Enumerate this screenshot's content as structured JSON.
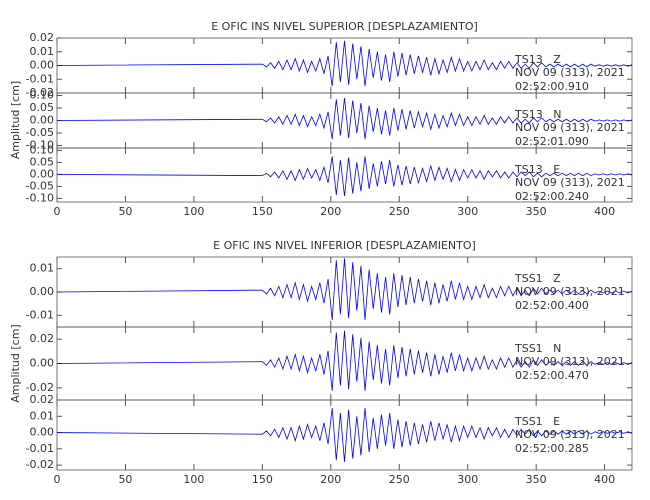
{
  "chart_data": [
    {
      "type": "line",
      "title": "E OFIC INS NIVEL SUPERIOR [DESPLAZAMIENTO]",
      "ylabel": "Amplitud [cm]",
      "xlim": [
        0,
        420
      ],
      "xticks": [
        0,
        50,
        100,
        150,
        200,
        250,
        300,
        350,
        400
      ],
      "x": [
        0,
        150,
        153,
        156,
        159,
        162,
        165,
        168,
        171,
        174,
        177,
        180,
        183,
        186,
        189,
        192,
        195,
        198,
        201,
        204,
        207,
        210,
        213,
        216,
        219,
        222,
        225,
        228,
        231,
        234,
        237,
        240,
        243,
        246,
        249,
        252,
        255,
        258,
        261,
        264,
        267,
        270,
        273,
        276,
        279,
        282,
        285,
        288,
        291,
        294,
        297,
        300,
        303,
        306,
        309,
        312,
        315,
        318,
        321,
        324,
        327,
        330,
        333,
        336,
        339,
        342,
        345,
        348,
        351,
        354,
        357,
        360,
        363,
        366,
        369,
        372,
        375,
        378,
        381,
        384,
        387,
        390,
        393,
        396,
        399,
        402,
        405,
        408,
        411,
        414,
        417,
        420
      ],
      "panels": [
        {
          "station": "TS13   Z",
          "date": "NOV 09 (313), 2021",
          "time": "02:52:00.910",
          "color": "#0000ff",
          "ylim": [
            -0.02,
            0.02
          ],
          "yticks": [
            0.02,
            0.01,
            {
              "value": 0,
              "label": "0.00"
            },
            -0.01,
            -0.02
          ],
          "values": [
            0,
            0.001,
            -0.001,
            0.002,
            -0.002,
            0.003,
            -0.003,
            0.004,
            -0.003,
            0.005,
            -0.004,
            0.004,
            -0.005,
            0.003,
            -0.004,
            0.005,
            -0.006,
            0.007,
            -0.015,
            0.017,
            -0.012,
            0.018,
            -0.014,
            0.016,
            -0.01,
            0.014,
            -0.015,
            0.012,
            -0.009,
            0.01,
            -0.011,
            0.008,
            -0.012,
            0.01,
            -0.008,
            0.009,
            -0.007,
            0.008,
            -0.006,
            0.007,
            -0.005,
            0.006,
            -0.007,
            0.005,
            -0.006,
            0.004,
            -0.005,
            0.006,
            -0.004,
            0.005,
            -0.004,
            0.003,
            -0.004,
            0.003,
            -0.003,
            0.004,
            -0.003,
            0.002,
            -0.003,
            0.003,
            -0.002,
            0.003,
            -0.002,
            0.002,
            -0.002,
            0.001,
            -0.002,
            0.002,
            -0.001,
            0.002,
            -0.001,
            0.001,
            -0.001,
            0.001,
            -0.001,
            0.001,
            -0.001,
            0.001,
            -0.001,
            0.001,
            -0.001,
            0.001,
            -0.0005,
            0.0005,
            -0.0005,
            0.0005,
            -0.0005,
            0.0005,
            -0.0005,
            0.0005,
            -0.0005,
            0.0005
          ]
        },
        {
          "station": "TS13   N",
          "date": "NOV 09 (313), 2021",
          "time": "02:52:01.090",
          "color": "#0000ff",
          "ylim": [
            -0.11,
            0.11
          ],
          "yticks": [
            {
              "value": 0.1,
              "label": "0.10"
            },
            0.05,
            {
              "value": 0,
              "label": "0.00"
            },
            -0.05,
            {
              "value": -0.1,
              "label": "-0.10"
            }
          ],
          "values": [
            0,
            0.005,
            -0.005,
            0.01,
            -0.01,
            0.015,
            -0.015,
            0.02,
            -0.015,
            0.025,
            -0.02,
            0.02,
            -0.025,
            0.015,
            -0.02,
            0.025,
            -0.03,
            0.035,
            -0.075,
            0.085,
            -0.06,
            0.09,
            -0.07,
            0.08,
            -0.05,
            0.07,
            -0.075,
            0.06,
            -0.045,
            0.05,
            -0.055,
            0.04,
            -0.06,
            0.05,
            -0.04,
            0.045,
            -0.035,
            0.04,
            -0.03,
            0.035,
            -0.025,
            0.03,
            -0.035,
            0.025,
            -0.03,
            0.02,
            -0.025,
            0.03,
            -0.02,
            0.025,
            -0.02,
            0.015,
            -0.02,
            0.015,
            -0.015,
            0.02,
            -0.015,
            0.01,
            -0.015,
            0.015,
            -0.01,
            0.015,
            -0.01,
            0.01,
            -0.01,
            0.005,
            -0.01,
            0.01,
            -0.005,
            0.01,
            -0.005,
            0.005,
            -0.005,
            0.005,
            -0.005,
            0.005,
            -0.005,
            0.005,
            -0.005,
            0.005,
            -0.005,
            0.005,
            -0.0025,
            0.0025,
            -0.0025,
            0.0025,
            -0.0025,
            0.0025,
            -0.0025,
            0.0025,
            -0.0025,
            0.0025
          ]
        },
        {
          "station": "TS13   E",
          "date": "NOV 09 (313), 2021",
          "time": "02:52:00.240",
          "color": "#0000ff",
          "ylim": [
            -0.115,
            0.11
          ],
          "yticks": [
            {
              "value": 0.1,
              "label": "0.10"
            },
            0.05,
            {
              "value": 0,
              "label": "0.00"
            },
            -0.05,
            {
              "value": -0.1,
              "label": "-0.10"
            }
          ],
          "values": [
            0,
            -0.005,
            0.005,
            -0.01,
            0.01,
            -0.015,
            0.015,
            -0.02,
            0.015,
            -0.025,
            0.02,
            -0.02,
            0.025,
            -0.015,
            0.02,
            -0.025,
            0.03,
            -0.035,
            0.075,
            -0.085,
            0.06,
            -0.09,
            0.07,
            -0.08,
            0.05,
            -0.07,
            0.075,
            -0.06,
            0.045,
            -0.05,
            0.055,
            -0.04,
            0.06,
            -0.05,
            0.04,
            -0.045,
            0.035,
            -0.04,
            0.03,
            -0.035,
            0.025,
            -0.03,
            0.035,
            -0.025,
            0.03,
            -0.02,
            0.025,
            -0.03,
            0.02,
            -0.025,
            0.02,
            -0.015,
            0.02,
            -0.015,
            0.015,
            -0.02,
            0.015,
            -0.01,
            0.015,
            -0.015,
            0.01,
            -0.015,
            0.01,
            -0.01,
            0.01,
            -0.005,
            0.01,
            -0.01,
            0.005,
            -0.01,
            0.005,
            -0.005,
            0.005,
            -0.005,
            0.005,
            -0.005,
            0.005,
            -0.005,
            0.005,
            -0.005,
            0.005,
            -0.005,
            0.0025,
            -0.0025,
            0.0025,
            -0.0025,
            0.0025,
            -0.0025,
            0.0025,
            -0.0025,
            0.0025,
            -0.0025
          ]
        }
      ]
    },
    {
      "type": "line",
      "title": "E OFIC INS NIVEL INFERIOR [DESPLAZAMIENTO]",
      "ylabel": "Amplitud [cm]",
      "xlim": [
        0,
        420
      ],
      "xticks": [
        0,
        50,
        100,
        150,
        200,
        250,
        300,
        350,
        400
      ],
      "x": [
        0,
        150,
        153,
        156,
        159,
        162,
        165,
        168,
        171,
        174,
        177,
        180,
        183,
        186,
        189,
        192,
        195,
        198,
        201,
        204,
        207,
        210,
        213,
        216,
        219,
        222,
        225,
        228,
        231,
        234,
        237,
        240,
        243,
        246,
        249,
        252,
        255,
        258,
        261,
        264,
        267,
        270,
        273,
        276,
        279,
        282,
        285,
        288,
        291,
        294,
        297,
        300,
        303,
        306,
        309,
        312,
        315,
        318,
        321,
        324,
        327,
        330,
        333,
        336,
        339,
        342,
        345,
        348,
        351,
        354,
        357,
        360,
        363,
        366,
        369,
        372,
        375,
        378,
        381,
        384,
        387,
        390,
        393,
        396,
        399,
        402,
        405,
        408,
        411,
        414,
        417,
        420
      ],
      "panels": [
        {
          "station": "TSS1   Z",
          "date": "NOV 09 (313), 2021",
          "time": "02:52:00.400",
          "color": "#0000ff",
          "ylim": [
            -0.015,
            0.015
          ],
          "yticks": [
            0.01,
            {
              "value": 0,
              "label": "0.00"
            },
            -0.01
          ],
          "values": [
            0,
            0.0008,
            -0.0008,
            0.0016,
            -0.0016,
            0.0024,
            -0.0024,
            0.0032,
            -0.0024,
            0.004,
            -0.0032,
            0.0032,
            -0.004,
            0.0024,
            -0.0032,
            0.004,
            -0.0048,
            0.0056,
            -0.012,
            0.0136,
            -0.0096,
            0.0144,
            -0.0112,
            0.0128,
            -0.008,
            0.0112,
            -0.012,
            0.0096,
            -0.0072,
            0.008,
            -0.0088,
            0.0064,
            -0.0096,
            0.008,
            -0.0064,
            0.0072,
            -0.0056,
            0.0064,
            -0.0048,
            0.0056,
            -0.004,
            0.0048,
            -0.0056,
            0.004,
            -0.0048,
            0.0032,
            -0.004,
            0.0048,
            -0.0032,
            0.004,
            -0.0032,
            0.0024,
            -0.0032,
            0.0024,
            -0.0024,
            0.0032,
            -0.0024,
            0.0016,
            -0.0024,
            0.0024,
            -0.0016,
            0.0024,
            -0.0016,
            0.0016,
            -0.0016,
            0.0008,
            -0.0016,
            0.0016,
            -0.0008,
            0.0016,
            -0.0008,
            0.0008,
            -0.0008,
            0.0008,
            -0.0008,
            0.0008,
            -0.0008,
            0.0008,
            -0.0008,
            0.0008,
            -0.0008,
            0.0008,
            -0.0004,
            0.0004,
            -0.0004,
            0.0004,
            -0.0004,
            0.0004,
            -0.0004,
            0.0004,
            -0.0004,
            0.0004
          ]
        },
        {
          "station": "TSS1   N",
          "date": "NOV 09 (313), 2021",
          "time": "02:52:00.470",
          "color": "#0000ff",
          "ylim": [
            -0.03,
            0.03
          ],
          "yticks": [
            0.02,
            {
              "value": 0,
              "label": "0.00"
            },
            -0.02
          ],
          "values": [
            0,
            0.0015,
            -0.0015,
            0.003,
            -0.003,
            0.0045,
            -0.0045,
            0.006,
            -0.0045,
            0.0075,
            -0.006,
            0.006,
            -0.0075,
            0.0045,
            -0.006,
            0.0075,
            -0.009,
            0.0105,
            -0.0225,
            0.0255,
            -0.018,
            0.027,
            -0.021,
            0.024,
            -0.015,
            0.021,
            -0.0225,
            0.018,
            -0.0135,
            0.015,
            -0.0165,
            0.012,
            -0.018,
            0.015,
            -0.012,
            0.0135,
            -0.0105,
            0.012,
            -0.009,
            0.0105,
            -0.0075,
            0.009,
            -0.0105,
            0.0075,
            -0.009,
            0.006,
            -0.0075,
            0.009,
            -0.006,
            0.0075,
            -0.006,
            0.0045,
            -0.006,
            0.0045,
            -0.0045,
            0.006,
            -0.0045,
            0.003,
            -0.0045,
            0.0045,
            -0.003,
            0.0045,
            -0.003,
            0.003,
            -0.003,
            0.0015,
            -0.003,
            0.003,
            -0.0015,
            0.003,
            -0.0015,
            0.0015,
            -0.0015,
            0.0015,
            -0.0015,
            0.0015,
            -0.0015,
            0.0015,
            -0.0015,
            0.0015,
            -0.0015,
            0.0015,
            -0.00075,
            0.00075,
            -0.00075,
            0.00075,
            -0.00075,
            0.00075,
            -0.00075,
            0.00075,
            -0.00075,
            0.00075
          ]
        },
        {
          "station": "TSS1   E",
          "date": "NOV 09 (313), 2021",
          "time": "02:52:00.285",
          "color": "#0000ff",
          "ylim": [
            -0.023,
            0.02
          ],
          "yticks": [
            0.02,
            0.01,
            {
              "value": 0,
              "label": "0.00"
            },
            -0.01,
            -0.02
          ],
          "values": [
            0,
            -0.001,
            0.001,
            -0.002,
            0.002,
            -0.003,
            0.003,
            -0.004,
            0.003,
            -0.005,
            0.004,
            -0.004,
            0.005,
            -0.003,
            0.004,
            -0.005,
            0.006,
            -0.007,
            0.015,
            -0.017,
            0.012,
            -0.018,
            0.014,
            -0.016,
            0.01,
            -0.014,
            0.015,
            -0.012,
            0.009,
            -0.01,
            0.011,
            -0.008,
            0.012,
            -0.01,
            0.008,
            -0.009,
            0.007,
            -0.008,
            0.006,
            -0.007,
            0.005,
            -0.006,
            0.007,
            -0.005,
            0.006,
            -0.004,
            0.005,
            -0.006,
            0.004,
            -0.005,
            0.004,
            -0.003,
            0.004,
            -0.003,
            0.003,
            -0.004,
            0.003,
            -0.002,
            0.003,
            -0.003,
            0.002,
            -0.003,
            0.002,
            -0.002,
            0.002,
            -0.001,
            0.002,
            -0.002,
            0.001,
            -0.002,
            0.001,
            -0.001,
            0.001,
            -0.001,
            0.001,
            -0.001,
            0.001,
            -0.001,
            0.001,
            -0.001,
            0.001,
            -0.001,
            0.0005,
            -0.0005,
            0.0005,
            -0.0005,
            0.0005,
            -0.0005,
            0.0005,
            -0.0005,
            0.0005,
            -0.0005
          ]
        }
      ]
    }
  ]
}
